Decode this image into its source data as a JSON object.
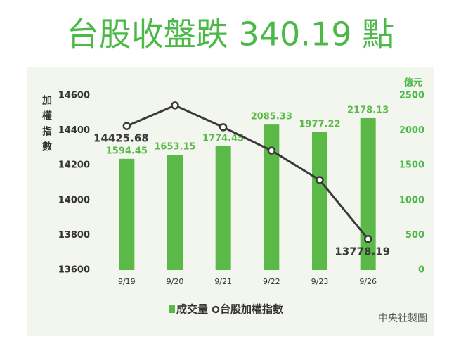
{
  "chart_data": {
    "type": "bar",
    "title": "台股收盤跌 340.19 點",
    "y_label": "加權指數",
    "y2_label": "億元",
    "source": "中央社製圖",
    "categories": [
      "9/19",
      "9/20",
      "9/21",
      "9/22",
      "9/23",
      "9/26"
    ],
    "series": [
      {
        "name": "成交量",
        "type": "bar",
        "axis": "y2",
        "color": "#5bb947",
        "values": [
          1594.45,
          1653.15,
          1774.45,
          2085.33,
          1977.22,
          2178.13
        ]
      },
      {
        "name": "台股加權指數",
        "type": "line",
        "color": "#3a3a3a",
        "values": [
          14425.68,
          14544,
          14419,
          14285,
          14116,
          13778.19
        ]
      }
    ],
    "ylim": [
      13600,
      14600
    ],
    "yticks": [
      13600,
      13800,
      14000,
      14200,
      14400,
      14600
    ],
    "y2lim": [
      0,
      2500
    ],
    "y2ticks": [
      0,
      500,
      1000,
      1500,
      2000,
      2500
    ]
  }
}
